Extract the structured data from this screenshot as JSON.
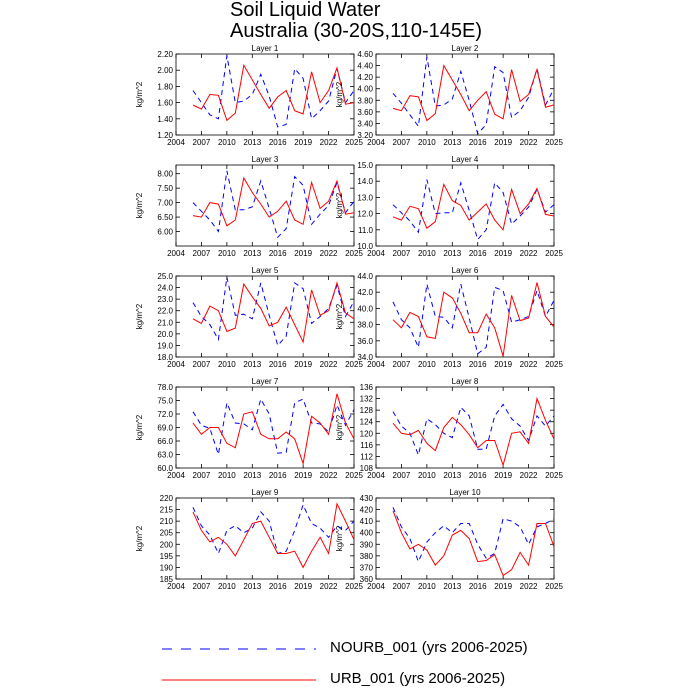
{
  "figure": {
    "title_line1": "Soil Liquid Water",
    "title_line2": "Australia (30-20S,110-145E)"
  },
  "legend": {
    "entries": [
      {
        "label": "NOURB_001 (yrs 2006-2025)",
        "color": "#0000ff",
        "style": "dashed"
      },
      {
        "label": "URB_001 (yrs 2006-2025)",
        "color": "#ff0000",
        "style": "solid"
      }
    ]
  },
  "chart_data": [
    {
      "type": "line",
      "title": "Layer 1",
      "ylabel": "kg/m^2",
      "xlim": [
        2004,
        2025
      ],
      "xticks": [
        2004,
        2007,
        2010,
        2013,
        2016,
        2019,
        2022,
        2025
      ],
      "ylim": [
        1.2,
        2.2
      ],
      "yticks": [
        "1.20",
        "1.40",
        "1.60",
        "1.80",
        "2.00",
        "2.20"
      ],
      "x": [
        2006,
        2007,
        2008,
        2009,
        2010,
        2011,
        2012,
        2013,
        2014,
        2015,
        2016,
        2017,
        2018,
        2019,
        2020,
        2021,
        2022,
        2023,
        2024,
        2025
      ],
      "series": [
        {
          "name": "NOURB_001",
          "values": [
            1.75,
            1.6,
            1.45,
            1.4,
            2.18,
            1.6,
            1.62,
            1.7,
            1.95,
            1.68,
            1.3,
            1.33,
            2.02,
            1.9,
            1.4,
            1.5,
            1.62,
            2.02,
            1.6,
            1.75
          ]
        },
        {
          "name": "URB_001",
          "values": [
            1.57,
            1.52,
            1.7,
            1.69,
            1.38,
            1.47,
            2.06,
            1.88,
            1.7,
            1.53,
            1.67,
            1.75,
            1.5,
            1.46,
            1.98,
            1.6,
            1.75,
            2.03,
            1.58,
            1.6
          ]
        }
      ]
    },
    {
      "type": "line",
      "title": "Layer 2",
      "ylabel": "kg/m^2",
      "xlim": [
        2004,
        2025
      ],
      "xticks": [
        2004,
        2007,
        2010,
        2013,
        2016,
        2019,
        2022,
        2025
      ],
      "ylim": [
        3.2,
        4.6
      ],
      "yticks": [
        "3.20",
        "3.40",
        "3.60",
        "3.80",
        "4.00",
        "4.20",
        "4.40",
        "4.60"
      ],
      "x": [
        2006,
        2007,
        2008,
        2009,
        2010,
        2011,
        2012,
        2013,
        2014,
        2015,
        2016,
        2017,
        2018,
        2019,
        2020,
        2021,
        2022,
        2023,
        2024,
        2025
      ],
      "series": [
        {
          "name": "NOURB_001",
          "values": [
            3.92,
            3.75,
            3.55,
            3.35,
            4.55,
            3.7,
            3.72,
            3.82,
            4.3,
            3.8,
            3.22,
            3.38,
            4.38,
            4.28,
            3.5,
            3.62,
            3.85,
            4.35,
            3.72,
            4.0
          ]
        },
        {
          "name": "URB_001",
          "values": [
            3.66,
            3.62,
            3.88,
            3.86,
            3.45,
            3.57,
            4.4,
            4.15,
            3.9,
            3.62,
            3.8,
            3.95,
            3.56,
            3.48,
            4.33,
            3.78,
            3.9,
            4.33,
            3.68,
            3.72
          ]
        }
      ]
    },
    {
      "type": "line",
      "title": "Layer 3",
      "ylabel": "kg/m^2",
      "xlim": [
        2004,
        2025
      ],
      "xticks": [
        2004,
        2007,
        2010,
        2013,
        2016,
        2019,
        2022,
        2025
      ],
      "ylim": [
        5.5,
        8.3
      ],
      "yticks": [
        "6.00",
        "6.50",
        "7.00",
        "7.50",
        "8.00"
      ],
      "x": [
        2006,
        2007,
        2008,
        2009,
        2010,
        2011,
        2012,
        2013,
        2014,
        2015,
        2016,
        2017,
        2018,
        2019,
        2020,
        2021,
        2022,
        2023,
        2024,
        2025
      ],
      "series": [
        {
          "name": "NOURB_001",
          "values": [
            7.0,
            6.7,
            6.4,
            6.0,
            8.1,
            6.75,
            6.75,
            6.85,
            7.75,
            6.8,
            5.8,
            6.1,
            7.9,
            7.6,
            6.25,
            6.6,
            6.9,
            7.7,
            6.65,
            7.05
          ]
        },
        {
          "name": "URB_001",
          "values": [
            6.55,
            6.5,
            7.0,
            6.95,
            6.2,
            6.4,
            7.85,
            7.35,
            6.95,
            6.5,
            6.7,
            7.05,
            6.4,
            6.25,
            7.7,
            6.8,
            7.05,
            7.75,
            6.6,
            6.65
          ]
        }
      ]
    },
    {
      "type": "line",
      "title": "Layer 4",
      "ylabel": "kg/m^2",
      "xlim": [
        2004,
        2025
      ],
      "xticks": [
        2004,
        2007,
        2010,
        2013,
        2016,
        2019,
        2022,
        2025
      ],
      "ylim": [
        10.0,
        15.0
      ],
      "yticks": [
        "10.0",
        "11.0",
        "12.0",
        "13.0",
        "14.0",
        "15.0"
      ],
      "x": [
        2006,
        2007,
        2008,
        2009,
        2010,
        2011,
        2012,
        2013,
        2014,
        2015,
        2016,
        2017,
        2018,
        2019,
        2020,
        2021,
        2022,
        2023,
        2024,
        2025
      ],
      "series": [
        {
          "name": "NOURB_001",
          "values": [
            12.55,
            12.05,
            11.55,
            10.85,
            14.1,
            12.0,
            12.05,
            12.05,
            13.9,
            12.2,
            10.4,
            11.0,
            13.9,
            13.3,
            11.35,
            11.85,
            12.4,
            13.5,
            12.1,
            12.55
          ]
        },
        {
          "name": "URB_001",
          "values": [
            11.8,
            11.6,
            12.45,
            12.3,
            11.1,
            11.5,
            13.8,
            12.8,
            12.5,
            11.6,
            12.1,
            12.6,
            11.6,
            11.0,
            13.5,
            12.0,
            12.6,
            13.55,
            11.95,
            11.85
          ]
        }
      ]
    },
    {
      "type": "line",
      "title": "Layer 5",
      "ylabel": "kg/m^2",
      "xlim": [
        2004,
        2025
      ],
      "xticks": [
        2004,
        2007,
        2010,
        2013,
        2016,
        2019,
        2022,
        2025
      ],
      "ylim": [
        18.0,
        25.0
      ],
      "yticks": [
        "18.0",
        "19.0",
        "20.0",
        "21.0",
        "22.0",
        "23.0",
        "24.0",
        "25.0"
      ],
      "x": [
        2006,
        2007,
        2008,
        2009,
        2010,
        2011,
        2012,
        2013,
        2014,
        2015,
        2016,
        2017,
        2018,
        2019,
        2020,
        2021,
        2022,
        2023,
        2024,
        2025
      ],
      "series": [
        {
          "name": "NOURB_001",
          "values": [
            22.7,
            21.5,
            20.8,
            19.5,
            24.9,
            21.6,
            21.7,
            21.3,
            24.4,
            21.6,
            19.0,
            19.8,
            24.4,
            23.9,
            20.9,
            21.5,
            22.2,
            24.2,
            21.5,
            22.8
          ]
        },
        {
          "name": "URB_001",
          "values": [
            21.3,
            20.9,
            22.4,
            22.0,
            20.2,
            20.5,
            24.3,
            23.2,
            22.2,
            20.7,
            21.0,
            22.3,
            20.8,
            19.3,
            23.8,
            21.6,
            22.0,
            24.4,
            21.8,
            21.3
          ]
        }
      ]
    },
    {
      "type": "line",
      "title": "Layer 6",
      "ylabel": "kg/m^2",
      "xlim": [
        2004,
        2025
      ],
      "xticks": [
        2004,
        2007,
        2010,
        2013,
        2016,
        2019,
        2022,
        2025
      ],
      "ylim": [
        34.0,
        44.0
      ],
      "yticks": [
        "34.0",
        "36.0",
        "38.0",
        "40.0",
        "42.0",
        "44.0"
      ],
      "x": [
        2006,
        2007,
        2008,
        2009,
        2010,
        2011,
        2012,
        2013,
        2014,
        2015,
        2016,
        2017,
        2018,
        2019,
        2020,
        2021,
        2022,
        2023,
        2024,
        2025
      ],
      "series": [
        {
          "name": "NOURB_001",
          "values": [
            40.8,
            38.6,
            37.6,
            35.2,
            43.0,
            39.0,
            38.9,
            37.6,
            43.0,
            38.8,
            34.4,
            35.2,
            42.6,
            42.2,
            38.3,
            38.6,
            39.0,
            42.2,
            39.0,
            41.0
          ]
        },
        {
          "name": "URB_001",
          "values": [
            38.6,
            37.6,
            39.5,
            39.0,
            36.5,
            36.3,
            42.0,
            41.3,
            39.4,
            37.0,
            37.0,
            39.3,
            37.6,
            34.1,
            41.6,
            38.5,
            38.8,
            43.2,
            39.0,
            37.7
          ]
        }
      ]
    },
    {
      "type": "line",
      "title": "Layer 7",
      "ylabel": "kg/m^2",
      "xlim": [
        2004,
        2025
      ],
      "xticks": [
        2004,
        2007,
        2010,
        2013,
        2016,
        2019,
        2022,
        2025
      ],
      "ylim": [
        60.0,
        78.0
      ],
      "yticks": [
        "60.0",
        "63.0",
        "66.0",
        "69.0",
        "72.0",
        "75.0",
        "78.0"
      ],
      "x": [
        2006,
        2007,
        2008,
        2009,
        2010,
        2011,
        2012,
        2013,
        2014,
        2015,
        2016,
        2017,
        2018,
        2019,
        2020,
        2021,
        2022,
        2023,
        2024,
        2025
      ],
      "series": [
        {
          "name": "NOURB_001",
          "values": [
            72.5,
            69.5,
            68.8,
            63.0,
            74.5,
            70.0,
            69.8,
            68.5,
            75.3,
            72.0,
            63.3,
            63.5,
            74.5,
            75.3,
            70.0,
            69.8,
            68.0,
            74.0,
            69.5,
            73.0
          ]
        },
        {
          "name": "URB_001",
          "values": [
            70.0,
            67.5,
            69.0,
            69.0,
            65.5,
            64.5,
            72.0,
            72.5,
            67.5,
            66.5,
            66.5,
            68.0,
            66.5,
            61.0,
            71.5,
            70.0,
            67.5,
            76.5,
            70.0,
            66.5
          ]
        }
      ]
    },
    {
      "type": "line",
      "title": "Layer 8",
      "ylabel": "kg/m^2",
      "xlim": [
        2004,
        2025
      ],
      "xticks": [
        2004,
        2007,
        2010,
        2013,
        2016,
        2019,
        2022,
        2025
      ],
      "ylim": [
        108,
        136
      ],
      "yticks": [
        "108",
        "112",
        "116",
        "120",
        "124",
        "128",
        "132",
        "136"
      ],
      "x": [
        2006,
        2007,
        2008,
        2009,
        2010,
        2011,
        2012,
        2013,
        2014,
        2015,
        2016,
        2017,
        2018,
        2019,
        2020,
        2021,
        2022,
        2023,
        2024,
        2025
      ],
      "series": [
        {
          "name": "NOURB_001",
          "values": [
            127.5,
            122.5,
            120.0,
            112.5,
            125.0,
            123.0,
            120.0,
            118.5,
            129.0,
            126.0,
            114.5,
            114.5,
            126.0,
            130.0,
            125.0,
            122.5,
            117.5,
            126.0,
            122.5,
            126.0
          ]
        },
        {
          "name": "URB_001",
          "values": [
            123.5,
            120.0,
            119.5,
            121.0,
            116.5,
            114.0,
            122.0,
            125.5,
            123.0,
            119.5,
            115.0,
            117.5,
            117.5,
            109.0,
            120.0,
            120.5,
            116.5,
            132.0,
            124.5,
            118.0
          ]
        }
      ]
    },
    {
      "type": "line",
      "title": "Layer 9",
      "ylabel": "kg/m^2",
      "xlim": [
        2004,
        2025
      ],
      "xticks": [
        2004,
        2007,
        2010,
        2013,
        2016,
        2019,
        2022,
        2025
      ],
      "ylim": [
        185,
        220
      ],
      "yticks": [
        "185",
        "190",
        "195",
        "200",
        "205",
        "210",
        "215",
        "220"
      ],
      "x": [
        2006,
        2007,
        2008,
        2009,
        2010,
        2011,
        2012,
        2013,
        2014,
        2015,
        2016,
        2017,
        2018,
        2019,
        2020,
        2021,
        2022,
        2023,
        2024,
        2025
      ],
      "series": [
        {
          "name": "NOURB_001",
          "values": [
            216.0,
            208.0,
            204.0,
            196.0,
            206.0,
            208.0,
            205.0,
            207.0,
            214.0,
            210.0,
            196.0,
            197.0,
            206.0,
            217.0,
            209.0,
            207.0,
            203.0,
            208.0,
            206.0,
            210.0
          ]
        },
        {
          "name": "URB_001",
          "values": [
            214.0,
            206.0,
            201.0,
            203.0,
            200.0,
            195.0,
            202.0,
            209.0,
            210.0,
            203.0,
            196.0,
            196.0,
            197.0,
            190.0,
            197.0,
            203.0,
            196.0,
            217.5,
            210.0,
            202.0
          ]
        }
      ]
    },
    {
      "type": "line",
      "title": "Layer 10",
      "ylabel": "kg/m^2",
      "xlim": [
        2004,
        2025
      ],
      "xticks": [
        2004,
        2007,
        2010,
        2013,
        2016,
        2019,
        2022,
        2025
      ],
      "ylim": [
        360,
        430
      ],
      "yticks": [
        "360",
        "370",
        "380",
        "390",
        "400",
        "410",
        "420",
        "430"
      ],
      "x": [
        2006,
        2007,
        2008,
        2009,
        2010,
        2011,
        2012,
        2013,
        2014,
        2015,
        2016,
        2017,
        2018,
        2019,
        2020,
        2021,
        2022,
        2023,
        2024,
        2025
      ],
      "series": [
        {
          "name": "NOURB_001",
          "values": [
            422.0,
            405.0,
            395.0,
            375.0,
            392.0,
            400.0,
            406.0,
            400.0,
            408.0,
            408.0,
            390.0,
            378.0,
            382.0,
            412.0,
            410.0,
            405.0,
            390.0,
            405.0,
            408.0,
            412.0
          ]
        },
        {
          "name": "URB_001",
          "values": [
            419.0,
            400.0,
            386.0,
            390.0,
            385.0,
            372.0,
            380.0,
            398.0,
            402.0,
            395.0,
            375.0,
            376.0,
            381.0,
            363.0,
            368.0,
            383.0,
            372.0,
            408.0,
            408.0,
            388.0
          ]
        }
      ]
    }
  ]
}
